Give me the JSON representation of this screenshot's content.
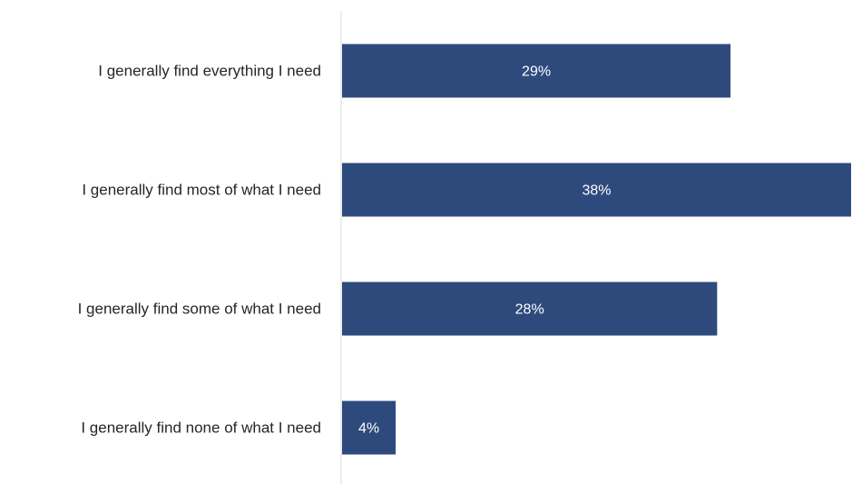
{
  "chart_data": {
    "type": "bar",
    "orientation": "horizontal",
    "categories": [
      "I generally find everything I need",
      "I generally find most of what I need",
      "I generally find some of what I need",
      "I generally find none of what I need"
    ],
    "values": [
      29,
      38,
      28,
      4
    ],
    "value_labels": [
      "29%",
      "38%",
      "28%",
      "4%"
    ],
    "title": "",
    "xlabel": "",
    "ylabel": "",
    "xlim": [
      0,
      38
    ],
    "grid": false,
    "legend": "none",
    "colors": {
      "bar": "#2e4a7d",
      "axis_line": "#d9d9d9",
      "label_text": "#262626",
      "value_text": "#ffffff"
    }
  }
}
